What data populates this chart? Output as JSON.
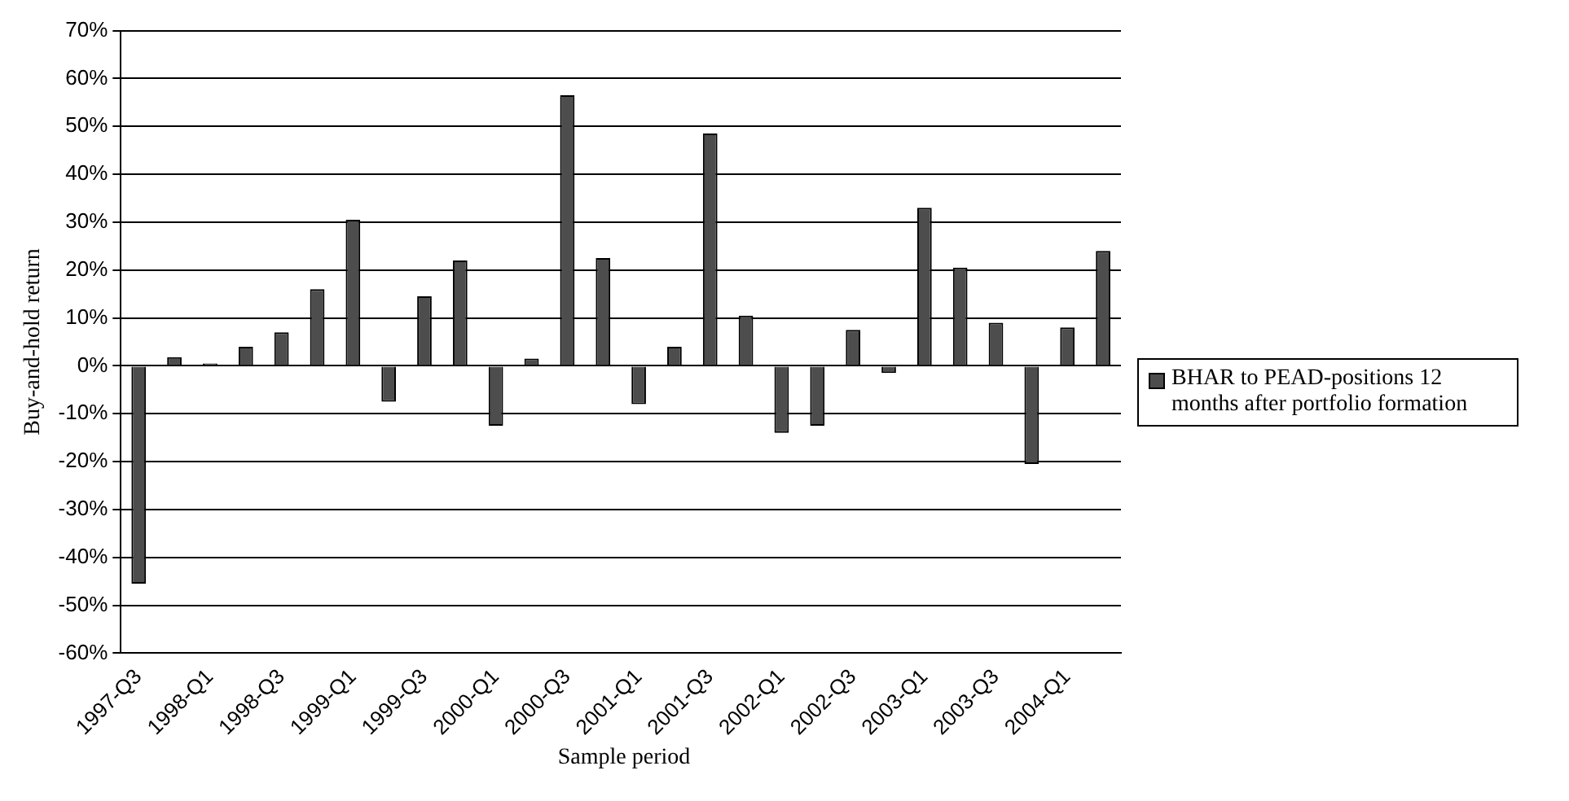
{
  "chart_data": {
    "type": "bar",
    "xlabel": "Sample period",
    "ylabel": "Buy-and-hold return",
    "categories": [
      "1997-Q3",
      null,
      "1998-Q1",
      null,
      "1998-Q3",
      null,
      "1999-Q1",
      null,
      "1999-Q3",
      null,
      "2000-Q1",
      null,
      "2000-Q3",
      null,
      "2001-Q1",
      null,
      "2001-Q3",
      null,
      "2002-Q1",
      null,
      "2002-Q3",
      null,
      "2003-Q1",
      null,
      "2003-Q3",
      null,
      "2004-Q1",
      null
    ],
    "series": [
      {
        "name": "BHAR to PEAD-positions 12 months after portfolio formation",
        "color": "#4d4d4d",
        "values": [
          -45.5,
          1.8,
          0.5,
          4,
          7,
          16,
          30.5,
          -7.5,
          14.5,
          22,
          -12.5,
          1.5,
          56.5,
          22.5,
          -8,
          4,
          48.5,
          10.5,
          -14,
          -12.5,
          7.5,
          -1.5,
          33,
          20.5,
          9,
          -20.5,
          8,
          24
        ]
      }
    ],
    "ylim": [
      -60,
      70
    ],
    "yticks": [
      {
        "value": -60,
        "label": "-60%"
      },
      {
        "value": -50,
        "label": "-50%"
      },
      {
        "value": -40,
        "label": "-40%"
      },
      {
        "value": -30,
        "label": "-30%"
      },
      {
        "value": -20,
        "label": "-20%"
      },
      {
        "value": -10,
        "label": "-10%"
      },
      {
        "value": 0,
        "label": "0%"
      },
      {
        "value": 10,
        "label": "10%"
      },
      {
        "value": 20,
        "label": "20%"
      },
      {
        "value": 30,
        "label": "30%"
      },
      {
        "value": 40,
        "label": "40%"
      },
      {
        "value": 50,
        "label": "50%"
      },
      {
        "value": 60,
        "label": "60%"
      },
      {
        "value": 70,
        "label": "70%"
      }
    ],
    "grid": "y",
    "legend": "right"
  }
}
